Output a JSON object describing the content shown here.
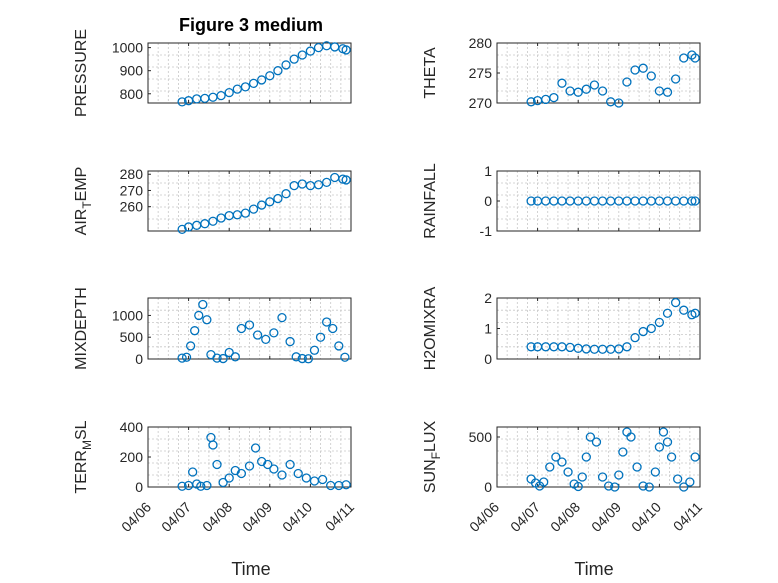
{
  "figure_title": "Figure 3 medium",
  "xlabel": "Time",
  "x_tick_labels": [
    "04/06",
    "04/07",
    "04/08",
    "04/09",
    "04/10",
    "04/11"
  ],
  "marker_color": "#0072bd",
  "chart_data": [
    {
      "type": "scatter",
      "id": "pressure",
      "ylabel": "PRESSURE",
      "ylabel_base": "PRESSURE",
      "xlim": [
        6.0,
        11.0
      ],
      "ylim": [
        760,
        1020
      ],
      "yticks": [
        800,
        900,
        1000
      ],
      "ytick_labels": [
        "800",
        "900",
        "1000"
      ],
      "x": [
        6.84,
        7.0,
        7.2,
        7.4,
        7.6,
        7.8,
        8.0,
        8.2,
        8.4,
        8.6,
        8.8,
        9.0,
        9.2,
        9.4,
        9.6,
        9.8,
        10.0,
        10.2,
        10.4,
        10.6,
        10.8,
        10.88
      ],
      "y": [
        765,
        770,
        778,
        780,
        785,
        792,
        805,
        820,
        830,
        845,
        860,
        878,
        900,
        925,
        950,
        968,
        985,
        1000,
        1008,
        1003,
        995,
        990
      ]
    },
    {
      "type": "scatter",
      "id": "theta",
      "ylabel": "THETA",
      "ylabel_base": "THETA",
      "xlim": [
        6.0,
        11.0
      ],
      "ylim": [
        270,
        280
      ],
      "yticks": [
        270,
        275,
        280
      ],
      "ytick_labels": [
        "270",
        "275",
        "280"
      ],
      "x": [
        6.84,
        7.0,
        7.2,
        7.4,
        7.6,
        7.8,
        8.0,
        8.2,
        8.4,
        8.6,
        8.8,
        9.0,
        9.2,
        9.4,
        9.6,
        9.8,
        10.0,
        10.2,
        10.4,
        10.6,
        10.8,
        10.88
      ],
      "y": [
        270.2,
        270.4,
        270.6,
        270.9,
        273.3,
        272.0,
        271.8,
        272.3,
        273.0,
        272.0,
        270.2,
        270.0,
        273.5,
        275.5,
        275.8,
        274.5,
        272.0,
        271.8,
        274.0,
        277.5,
        278.0,
        277.5
      ]
    },
    {
      "type": "scatter",
      "id": "air_temp",
      "ylabel": "AIR_TEMP",
      "ylabel_base": "AIR",
      "ylabel_sub": "T",
      "ylabel_rest": "EMP",
      "xlim": [
        6.0,
        11.0
      ],
      "ylim": [
        245,
        282
      ],
      "yticks": [
        260,
        270,
        280
      ],
      "ytick_labels": [
        "260",
        "270",
        "280"
      ],
      "x": [
        6.84,
        7.0,
        7.2,
        7.4,
        7.6,
        7.8,
        8.0,
        8.2,
        8.4,
        8.6,
        8.8,
        9.0,
        9.2,
        9.4,
        9.6,
        9.8,
        10.0,
        10.2,
        10.4,
        10.6,
        10.8,
        10.88
      ],
      "y": [
        246.0,
        247.5,
        248.5,
        249.5,
        251.0,
        253.0,
        254.5,
        255.0,
        256.0,
        258.5,
        261.0,
        263.0,
        265.0,
        268.0,
        273.0,
        274.0,
        273.0,
        273.5,
        275.0,
        278.0,
        277.0,
        276.5
      ]
    },
    {
      "type": "scatter",
      "id": "rainfall",
      "ylabel": "RAINFALL",
      "ylabel_base": "RAINFALL",
      "xlim": [
        6.0,
        11.0
      ],
      "ylim": [
        -1,
        1
      ],
      "yticks": [
        -1,
        0,
        1
      ],
      "ytick_labels": [
        "-1",
        "0",
        "1"
      ],
      "x": [
        6.84,
        7.0,
        7.2,
        7.4,
        7.6,
        7.8,
        8.0,
        8.2,
        8.4,
        8.6,
        8.8,
        9.0,
        9.2,
        9.4,
        9.6,
        9.8,
        10.0,
        10.2,
        10.4,
        10.6,
        10.8,
        10.88
      ],
      "y": [
        0,
        0,
        0,
        0,
        0,
        0,
        0,
        0,
        0,
        0,
        0,
        0,
        0,
        0,
        0,
        0,
        0,
        0,
        0,
        0,
        0,
        0
      ]
    },
    {
      "type": "scatter",
      "id": "mixdepth",
      "ylabel": "MIXDEPTH",
      "ylabel_base": "MIXDEPTH",
      "xlim": [
        6.0,
        11.0
      ],
      "ylim": [
        0,
        1400
      ],
      "yticks": [
        0,
        500,
        1000
      ],
      "ytick_labels": [
        "0",
        "500",
        "1000"
      ],
      "x": [
        6.84,
        6.95,
        7.05,
        7.15,
        7.25,
        7.35,
        7.45,
        7.55,
        7.7,
        7.85,
        8.0,
        8.15,
        8.3,
        8.5,
        8.7,
        8.9,
        9.1,
        9.3,
        9.5,
        9.65,
        9.8,
        9.95,
        10.1,
        10.25,
        10.4,
        10.55,
        10.7,
        10.85
      ],
      "y": [
        20,
        40,
        300,
        650,
        1000,
        1250,
        900,
        100,
        20,
        10,
        150,
        50,
        700,
        780,
        550,
        450,
        600,
        950,
        400,
        50,
        10,
        5,
        200,
        500,
        850,
        700,
        300,
        40
      ]
    },
    {
      "type": "scatter",
      "id": "h2omixra",
      "ylabel": "H2OMIXRA",
      "ylabel_base": "H2OMIXRA",
      "xlim": [
        6.0,
        11.0
      ],
      "ylim": [
        0,
        2
      ],
      "yticks": [
        0,
        1,
        2
      ],
      "ytick_labels": [
        "0",
        "1",
        "2"
      ],
      "x": [
        6.84,
        7.0,
        7.2,
        7.4,
        7.6,
        7.8,
        8.0,
        8.2,
        8.4,
        8.6,
        8.8,
        9.0,
        9.2,
        9.4,
        9.6,
        9.8,
        10.0,
        10.2,
        10.4,
        10.6,
        10.8,
        10.88
      ],
      "y": [
        0.4,
        0.4,
        0.4,
        0.4,
        0.4,
        0.38,
        0.35,
        0.33,
        0.32,
        0.32,
        0.32,
        0.33,
        0.4,
        0.7,
        0.9,
        1.0,
        1.2,
        1.5,
        1.85,
        1.6,
        1.45,
        1.5
      ]
    },
    {
      "type": "scatter",
      "id": "terr_msl",
      "ylabel": "TERR_MSL",
      "ylabel_base": "TERR",
      "ylabel_sub": "M",
      "ylabel_rest": "SL",
      "xlim": [
        6.0,
        11.0
      ],
      "ylim": [
        0,
        400
      ],
      "yticks": [
        0,
        200,
        400
      ],
      "ytick_labels": [
        "0",
        "200",
        "400"
      ],
      "x": [
        6.84,
        7.0,
        7.1,
        7.2,
        7.3,
        7.45,
        7.55,
        7.6,
        7.7,
        7.85,
        8.0,
        8.15,
        8.3,
        8.5,
        8.65,
        8.8,
        8.95,
        9.1,
        9.3,
        9.5,
        9.7,
        9.9,
        10.1,
        10.3,
        10.5,
        10.7,
        10.88
      ],
      "y": [
        5,
        10,
        100,
        20,
        5,
        10,
        330,
        280,
        150,
        30,
        60,
        110,
        90,
        140,
        260,
        170,
        150,
        120,
        80,
        150,
        90,
        60,
        40,
        50,
        10,
        10,
        15
      ]
    },
    {
      "type": "scatter",
      "id": "sun_flux",
      "ylabel": "SUN_FLUX",
      "ylabel_base": "SUN",
      "ylabel_sub": "F",
      "ylabel_rest": "LUX",
      "xlim": [
        6.0,
        11.0
      ],
      "ylim": [
        0,
        600
      ],
      "yticks": [
        0,
        500
      ],
      "ytick_labels": [
        "0",
        "500"
      ],
      "x": [
        6.84,
        6.95,
        7.05,
        7.15,
        7.3,
        7.45,
        7.6,
        7.75,
        7.9,
        8.0,
        8.1,
        8.2,
        8.3,
        8.45,
        8.6,
        8.75,
        8.9,
        9.0,
        9.1,
        9.2,
        9.3,
        9.45,
        9.6,
        9.75,
        9.9,
        10.0,
        10.1,
        10.2,
        10.3,
        10.45,
        10.6,
        10.75,
        10.88
      ],
      "y": [
        80,
        40,
        10,
        50,
        200,
        300,
        250,
        150,
        30,
        5,
        100,
        300,
        500,
        450,
        100,
        10,
        0,
        120,
        350,
        550,
        500,
        200,
        10,
        0,
        150,
        400,
        550,
        450,
        300,
        80,
        0,
        50,
        300
      ]
    }
  ]
}
